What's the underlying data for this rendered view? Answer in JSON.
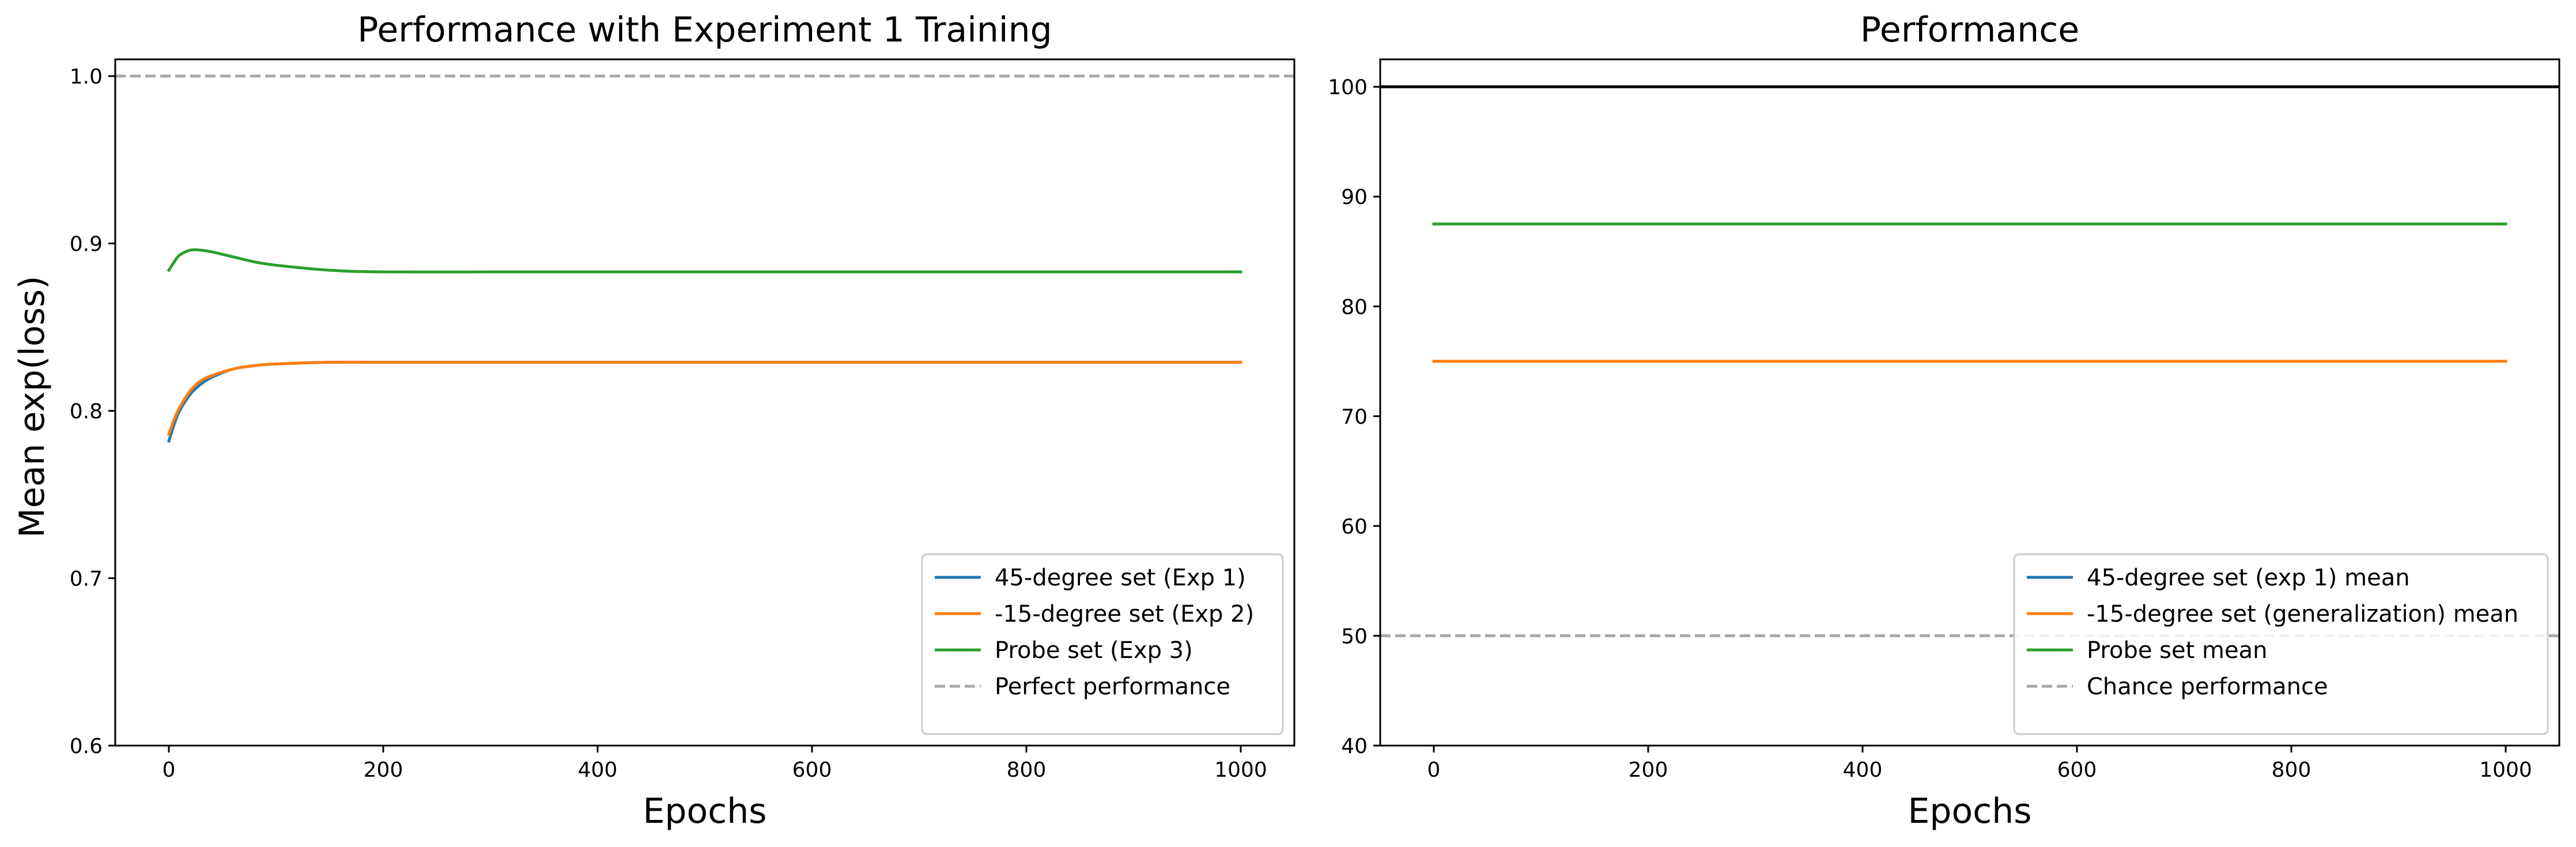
{
  "chart_data": [
    {
      "type": "line",
      "title": "Performance with Experiment 1 Training",
      "xlabel": "Epochs",
      "ylabel": "Mean exp(loss)",
      "xlim": [
        -50,
        1050
      ],
      "ylim": [
        0.6,
        1.01
      ],
      "xticks": [
        0,
        200,
        400,
        600,
        800,
        1000
      ],
      "yticks": [
        0.6,
        0.7,
        0.8,
        0.9,
        1.0
      ],
      "xtick_labels": [
        "0",
        "200",
        "400",
        "600",
        "800",
        "1000"
      ],
      "ytick_labels": [
        "0.6",
        "0.7",
        "0.8",
        "0.9",
        "1.0"
      ],
      "legend_position": "lower-right",
      "grid": false,
      "series": [
        {
          "name": "45-degree set (Exp 1)",
          "color": "#1f77b4",
          "style": "solid",
          "x": [
            0,
            5,
            10,
            20,
            30,
            40,
            60,
            80,
            100,
            150,
            200,
            300,
            400,
            600,
            800,
            1000
          ],
          "y": [
            0.782,
            0.792,
            0.8,
            0.81,
            0.816,
            0.82,
            0.825,
            0.827,
            0.828,
            0.829,
            0.829,
            0.829,
            0.829,
            0.829,
            0.829,
            0.829
          ]
        },
        {
          "name": "-15-degree set (Exp 2)",
          "color": "#ff7f0e",
          "style": "solid",
          "x": [
            0,
            5,
            10,
            20,
            30,
            40,
            60,
            80,
            100,
            150,
            200,
            300,
            400,
            600,
            800,
            1000
          ],
          "y": [
            0.786,
            0.795,
            0.802,
            0.812,
            0.818,
            0.821,
            0.825,
            0.827,
            0.828,
            0.829,
            0.829,
            0.829,
            0.829,
            0.829,
            0.829,
            0.829
          ]
        },
        {
          "name": "Probe set (Exp 3)",
          "color": "#2ca02c",
          "style": "solid",
          "x": [
            0,
            5,
            10,
            20,
            30,
            40,
            60,
            80,
            100,
            150,
            200,
            300,
            400,
            600,
            800,
            1000
          ],
          "y": [
            0.884,
            0.889,
            0.893,
            0.896,
            0.896,
            0.895,
            0.892,
            0.889,
            0.887,
            0.884,
            0.883,
            0.883,
            0.883,
            0.883,
            0.883,
            0.883
          ]
        },
        {
          "name": "Perfect performance",
          "color": "#a9a9a9",
          "style": "dashed",
          "span": "full",
          "y_const": 1.0
        }
      ]
    },
    {
      "type": "line",
      "title": "Performance",
      "xlabel": "Epochs",
      "ylabel": "",
      "xlim": [
        -50,
        1050
      ],
      "ylim": [
        40,
        102.5
      ],
      "xticks": [
        0,
        200,
        400,
        600,
        800,
        1000
      ],
      "yticks": [
        40,
        50,
        60,
        70,
        80,
        90,
        100
      ],
      "xtick_labels": [
        "0",
        "200",
        "400",
        "600",
        "800",
        "1000"
      ],
      "ytick_labels": [
        "40",
        "50",
        "60",
        "70",
        "80",
        "90",
        "100"
      ],
      "legend_position": "lower-right",
      "grid": false,
      "series": [
        {
          "name": "",
          "color": "#000000",
          "style": "solid",
          "span": "full",
          "y_const": 100
        },
        {
          "name": "45-degree set (exp 1) mean",
          "color": "#1f77b4",
          "style": "solid",
          "x": [
            0,
            1000
          ],
          "y": [
            75,
            75
          ]
        },
        {
          "name": "-15-degree set (generalization) mean",
          "color": "#ff7f0e",
          "style": "solid",
          "x": [
            0,
            1000
          ],
          "y": [
            75,
            75
          ]
        },
        {
          "name": "Probe set mean",
          "color": "#2ca02c",
          "style": "solid",
          "x": [
            0,
            1000
          ],
          "y": [
            87.5,
            87.5
          ]
        },
        {
          "name": "Chance performance",
          "color": "#a9a9a9",
          "style": "dashed",
          "span": "full",
          "y_const": 50
        }
      ]
    }
  ]
}
